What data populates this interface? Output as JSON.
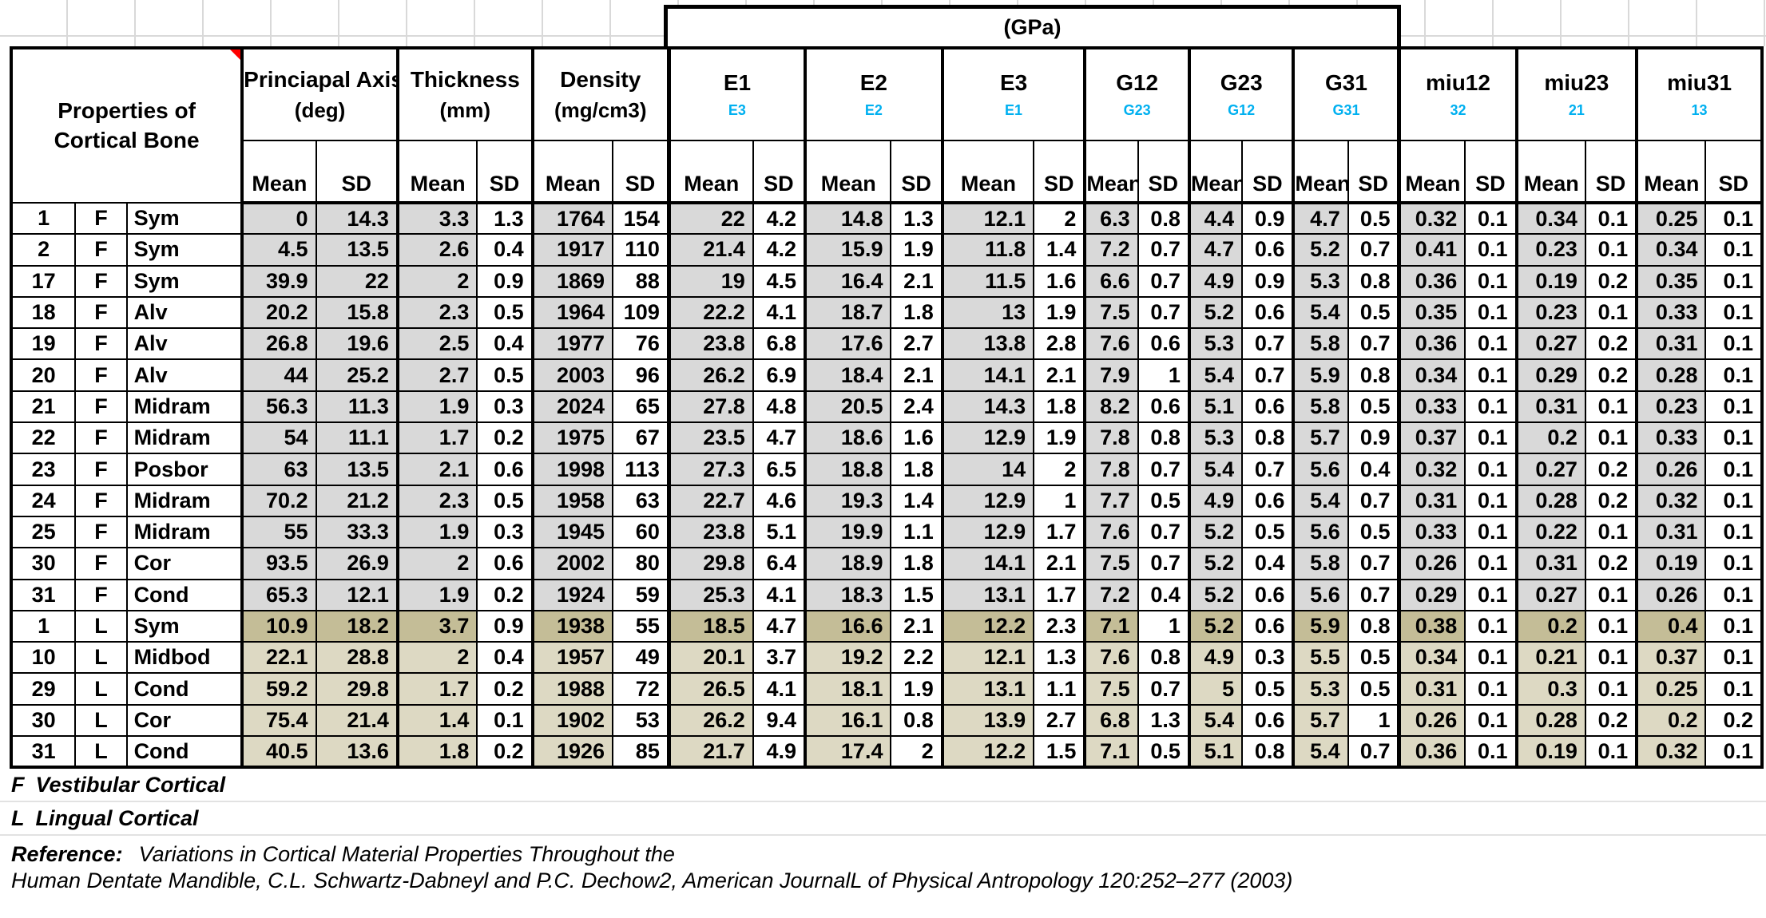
{
  "spreadsheet": {
    "gpa_banner": "(GPa)",
    "corner_title_line1": "Properties of",
    "corner_title_line2": "Cortical Bone",
    "stat_headers": {
      "mean": "Mean",
      "sd": "SD"
    },
    "column_groups": [
      {
        "main": "Princiapal Axis",
        "sub": "(deg)",
        "sub_style": "plain"
      },
      {
        "main": "Thickness",
        "sub": "(mm)",
        "sub_style": "plain"
      },
      {
        "main": "Density",
        "sub": "(mg/cm3)",
        "sub_style": "plain"
      },
      {
        "main": "E1",
        "sub": "E3",
        "sub_style": "cyan"
      },
      {
        "main": "E2",
        "sub": "E2",
        "sub_style": "cyan"
      },
      {
        "main": "E3",
        "sub": "E1",
        "sub_style": "cyan"
      },
      {
        "main": "G12",
        "sub": "G23",
        "sub_style": "cyan"
      },
      {
        "main": "G23",
        "sub": "G12",
        "sub_style": "cyan"
      },
      {
        "main": "G31",
        "sub": "G31",
        "sub_style": "cyan"
      },
      {
        "main": "miu12",
        "sub": "32",
        "sub_style": "cyan"
      },
      {
        "main": "miu23",
        "sub": "21",
        "sub_style": "cyan"
      },
      {
        "main": "miu31",
        "sub": "13",
        "sub_style": "cyan"
      }
    ],
    "rows": [
      {
        "id": "1",
        "side": "F",
        "region": "Sym",
        "shade": "gray",
        "values": [
          "0",
          "14.3",
          "3.3",
          "1.3",
          "1764",
          "154",
          "22",
          "4.2",
          "14.8",
          "1.3",
          "12.1",
          "2",
          "6.3",
          "0.8",
          "4.4",
          "0.9",
          "4.7",
          "0.5",
          "0.32",
          "0.1",
          "0.34",
          "0.1",
          "0.25",
          "0.1"
        ]
      },
      {
        "id": "2",
        "side": "F",
        "region": "Sym",
        "shade": "gray",
        "values": [
          "4.5",
          "13.5",
          "2.6",
          "0.4",
          "1917",
          "110",
          "21.4",
          "4.2",
          "15.9",
          "1.9",
          "11.8",
          "1.4",
          "7.2",
          "0.7",
          "4.7",
          "0.6",
          "5.2",
          "0.7",
          "0.41",
          "0.1",
          "0.23",
          "0.1",
          "0.34",
          "0.1"
        ]
      },
      {
        "id": "17",
        "side": "F",
        "region": "Sym",
        "shade": "gray",
        "values": [
          "39.9",
          "22",
          "2",
          "0.9",
          "1869",
          "88",
          "19",
          "4.5",
          "16.4",
          "2.1",
          "11.5",
          "1.6",
          "6.6",
          "0.7",
          "4.9",
          "0.9",
          "5.3",
          "0.8",
          "0.36",
          "0.1",
          "0.19",
          "0.2",
          "0.35",
          "0.1"
        ]
      },
      {
        "id": "18",
        "side": "F",
        "region": "Alv",
        "shade": "gray",
        "values": [
          "20.2",
          "15.8",
          "2.3",
          "0.5",
          "1964",
          "109",
          "22.2",
          "4.1",
          "18.7",
          "1.8",
          "13",
          "1.9",
          "7.5",
          "0.7",
          "5.2",
          "0.6",
          "5.4",
          "0.5",
          "0.35",
          "0.1",
          "0.23",
          "0.1",
          "0.33",
          "0.1"
        ]
      },
      {
        "id": "19",
        "side": "F",
        "region": "Alv",
        "shade": "gray",
        "values": [
          "26.8",
          "19.6",
          "2.5",
          "0.4",
          "1977",
          "76",
          "23.8",
          "6.8",
          "17.6",
          "2.7",
          "13.8",
          "2.8",
          "7.6",
          "0.6",
          "5.3",
          "0.7",
          "5.8",
          "0.7",
          "0.36",
          "0.1",
          "0.27",
          "0.2",
          "0.31",
          "0.1"
        ]
      },
      {
        "id": "20",
        "side": "F",
        "region": "Alv",
        "shade": "gray",
        "values": [
          "44",
          "25.2",
          "2.7",
          "0.5",
          "2003",
          "96",
          "26.2",
          "6.9",
          "18.4",
          "2.1",
          "14.1",
          "2.1",
          "7.9",
          "1",
          "5.4",
          "0.7",
          "5.9",
          "0.8",
          "0.34",
          "0.1",
          "0.29",
          "0.2",
          "0.28",
          "0.1"
        ]
      },
      {
        "id": "21",
        "side": "F",
        "region": "Midram",
        "shade": "gray",
        "values": [
          "56.3",
          "11.3",
          "1.9",
          "0.3",
          "2024",
          "65",
          "27.8",
          "4.8",
          "20.5",
          "2.4",
          "14.3",
          "1.8",
          "8.2",
          "0.6",
          "5.1",
          "0.6",
          "5.8",
          "0.5",
          "0.33",
          "0.1",
          "0.31",
          "0.1",
          "0.23",
          "0.1"
        ]
      },
      {
        "id": "22",
        "side": "F",
        "region": "Midram",
        "shade": "gray",
        "values": [
          "54",
          "11.1",
          "1.7",
          "0.2",
          "1975",
          "67",
          "23.5",
          "4.7",
          "18.6",
          "1.6",
          "12.9",
          "1.9",
          "7.8",
          "0.8",
          "5.3",
          "0.8",
          "5.7",
          "0.9",
          "0.37",
          "0.1",
          "0.2",
          "0.1",
          "0.33",
          "0.1"
        ]
      },
      {
        "id": "23",
        "side": "F",
        "region": "Posbor",
        "shade": "gray",
        "values": [
          "63",
          "13.5",
          "2.1",
          "0.6",
          "1998",
          "113",
          "27.3",
          "6.5",
          "18.8",
          "1.8",
          "14",
          "2",
          "7.8",
          "0.7",
          "5.4",
          "0.7",
          "5.6",
          "0.4",
          "0.32",
          "0.1",
          "0.27",
          "0.2",
          "0.26",
          "0.1"
        ]
      },
      {
        "id": "24",
        "side": "F",
        "region": "Midram",
        "shade": "gray",
        "values": [
          "70.2",
          "21.2",
          "2.3",
          "0.5",
          "1958",
          "63",
          "22.7",
          "4.6",
          "19.3",
          "1.4",
          "12.9",
          "1",
          "7.7",
          "0.5",
          "4.9",
          "0.6",
          "5.4",
          "0.7",
          "0.31",
          "0.1",
          "0.28",
          "0.2",
          "0.32",
          "0.1"
        ]
      },
      {
        "id": "25",
        "side": "F",
        "region": "Midram",
        "shade": "gray",
        "values": [
          "55",
          "33.3",
          "1.9",
          "0.3",
          "1945",
          "60",
          "23.8",
          "5.1",
          "19.9",
          "1.1",
          "12.9",
          "1.7",
          "7.6",
          "0.7",
          "5.2",
          "0.5",
          "5.6",
          "0.5",
          "0.33",
          "0.1",
          "0.22",
          "0.1",
          "0.31",
          "0.1"
        ]
      },
      {
        "id": "30",
        "side": "F",
        "region": "Cor",
        "shade": "gray",
        "values": [
          "93.5",
          "26.9",
          "2",
          "0.6",
          "2002",
          "80",
          "29.8",
          "6.4",
          "18.9",
          "1.8",
          "14.1",
          "2.1",
          "7.5",
          "0.7",
          "5.2",
          "0.4",
          "5.8",
          "0.7",
          "0.26",
          "0.1",
          "0.31",
          "0.2",
          "0.19",
          "0.1"
        ]
      },
      {
        "id": "31",
        "side": "F",
        "region": "Cond",
        "shade": "gray",
        "values": [
          "65.3",
          "12.1",
          "1.9",
          "0.2",
          "1924",
          "59",
          "25.3",
          "4.1",
          "18.3",
          "1.5",
          "13.1",
          "1.7",
          "7.2",
          "0.4",
          "5.2",
          "0.6",
          "5.6",
          "0.7",
          "0.29",
          "0.1",
          "0.27",
          "0.1",
          "0.26",
          "0.1"
        ]
      },
      {
        "id": "1",
        "side": "L",
        "region": "Sym",
        "shade": "dark",
        "values": [
          "10.9",
          "18.2",
          "3.7",
          "0.9",
          "1938",
          "55",
          "18.5",
          "4.7",
          "16.6",
          "2.1",
          "12.2",
          "2.3",
          "7.1",
          "1",
          "5.2",
          "0.6",
          "5.9",
          "0.8",
          "0.38",
          "0.1",
          "0.2",
          "0.1",
          "0.4",
          "0.1"
        ]
      },
      {
        "id": "10",
        "side": "L",
        "region": "Midbod",
        "shade": "tan",
        "values": [
          "22.1",
          "28.8",
          "2",
          "0.4",
          "1957",
          "49",
          "20.1",
          "3.7",
          "19.2",
          "2.2",
          "12.1",
          "1.3",
          "7.6",
          "0.8",
          "4.9",
          "0.3",
          "5.5",
          "0.5",
          "0.34",
          "0.1",
          "0.21",
          "0.1",
          "0.37",
          "0.1"
        ]
      },
      {
        "id": "29",
        "side": "L",
        "region": "Cond",
        "shade": "tan",
        "values": [
          "59.2",
          "29.8",
          "1.7",
          "0.2",
          "1988",
          "72",
          "26.5",
          "4.1",
          "18.1",
          "1.9",
          "13.1",
          "1.1",
          "7.5",
          "0.7",
          "5",
          "0.5",
          "5.3",
          "0.5",
          "0.31",
          "0.1",
          "0.3",
          "0.1",
          "0.25",
          "0.1"
        ]
      },
      {
        "id": "30",
        "side": "L",
        "region": "Cor",
        "shade": "tan",
        "values": [
          "75.4",
          "21.4",
          "1.4",
          "0.1",
          "1902",
          "53",
          "26.2",
          "9.4",
          "16.1",
          "0.8",
          "13.9",
          "2.7",
          "6.8",
          "1.3",
          "5.4",
          "0.6",
          "5.7",
          "1",
          "0.26",
          "0.1",
          "0.28",
          "0.2",
          "0.2",
          "0.2"
        ]
      },
      {
        "id": "31",
        "side": "L",
        "region": "Cond",
        "shade": "tan",
        "values": [
          "40.5",
          "13.6",
          "1.8",
          "0.2",
          "1926",
          "85",
          "21.7",
          "4.9",
          "17.4",
          "2",
          "12.2",
          "1.5",
          "7.1",
          "0.5",
          "5.1",
          "0.8",
          "5.4",
          "0.7",
          "0.36",
          "0.1",
          "0.19",
          "0.1",
          "0.32",
          "0.1"
        ]
      }
    ],
    "footnotes": [
      {
        "prefix": "F",
        "text": "Vestibular Cortical"
      },
      {
        "prefix": "L",
        "text": "Lingual Cortical"
      }
    ],
    "reference_label": "Reference:",
    "reference_line1": "Variations in Cortical Material Properties Throughout the",
    "reference_line2": "Human Dentate Mandible, C.L. Schwartz-Dabneyl and P.C. Dechow2, American JournalL of Physical Antropology 120:252–277 (2003)",
    "colors": {
      "cyan_subheader": "#00B0F0",
      "gray_fill": "#D9D9D9",
      "tan_fill": "#DDD9C3",
      "dark_tan_fill": "#C4BD97",
      "comment_flag_red": "#FF0000"
    }
  }
}
